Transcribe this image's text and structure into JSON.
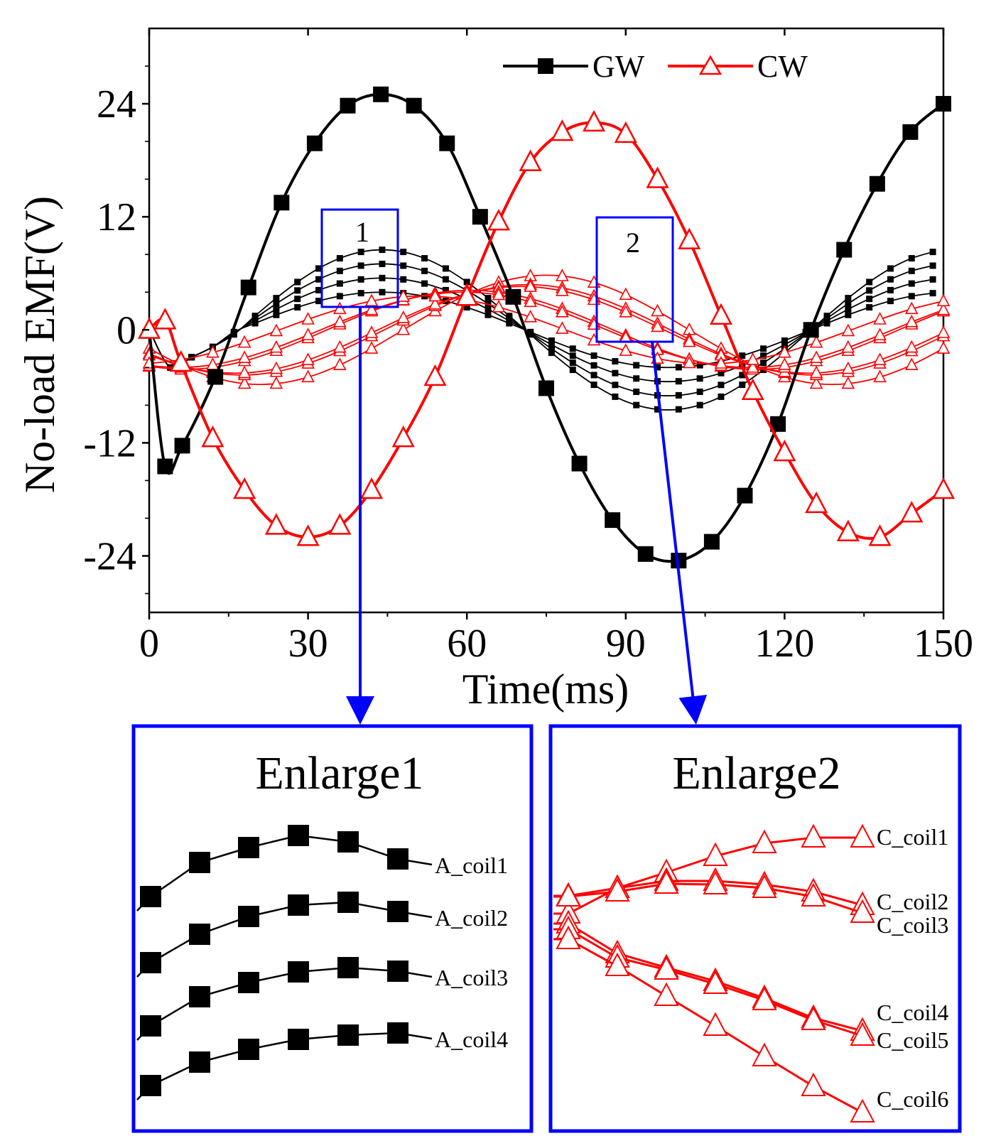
{
  "chart_data": {
    "type": "line",
    "main": {
      "xlabel": "Time(ms)",
      "ylabel": "No-load EMF(V)",
      "xlim": [
        0,
        150
      ],
      "ylim": [
        -30,
        32
      ],
      "xticks": [
        0,
        30,
        60,
        90,
        120,
        150
      ],
      "yticks": [
        -24,
        -12,
        0,
        12,
        24
      ],
      "xtick_labels": [
        "0",
        "30",
        "60",
        "90",
        "120",
        "150"
      ],
      "ytick_labels": [
        "-24",
        "-12",
        "0",
        "12",
        "24"
      ],
      "legend": {
        "position": "top-right",
        "entries": [
          "GW",
          "CW"
        ]
      },
      "series": [
        {
          "name": "GW",
          "color": "#000000",
          "marker": "square",
          "x": [
            0,
            3,
            6.25,
            12.5,
            18.75,
            25,
            31.25,
            37.5,
            43.75,
            50,
            56.25,
            62.5,
            68.75,
            75,
            81.25,
            87.5,
            93.75,
            100,
            106.25,
            112.5,
            118.75,
            125,
            131.25,
            137.5,
            143.75,
            150
          ],
          "y": [
            0,
            -14.5,
            -12.3,
            -5,
            4.5,
            13.5,
            19.8,
            23.8,
            25,
            23.8,
            19.8,
            12,
            3.5,
            -6.2,
            -14.2,
            -20.2,
            -23.8,
            -24.5,
            -22.5,
            -17.6,
            -10,
            0,
            8.5,
            15.5,
            21,
            24
          ]
        },
        {
          "name": "CW",
          "color": "#ff0000",
          "marker": "triangle",
          "x": [
            0,
            3,
            6,
            12,
            18,
            24,
            30,
            36,
            42,
            48,
            54,
            60,
            66,
            72,
            78,
            84,
            90,
            96,
            102,
            108,
            114,
            120,
            126,
            132,
            138,
            144,
            150
          ],
          "y": [
            0,
            1,
            -3.5,
            -11.5,
            -17,
            -20.8,
            -22,
            -20.8,
            -17,
            -11.5,
            -5,
            3.5,
            11.5,
            17.8,
            21,
            22,
            20.8,
            16,
            9.5,
            1.5,
            -6.5,
            -13,
            -18.5,
            -21.5,
            -22,
            -19.5,
            -17
          ]
        }
      ],
      "coil_series_gw": [
        {
          "name": "A_coil1",
          "amplitude": 8.5
        },
        {
          "name": "A_coil2",
          "amplitude": 7.0
        },
        {
          "name": "A_coil3",
          "amplitude": 5.5
        },
        {
          "name": "A_coil4",
          "amplitude": 4.0
        }
      ],
      "coil_series_cw": [
        {
          "name": "C_coil1",
          "amplitude": 5.8,
          "phase_deg": 0
        },
        {
          "name": "C_coil2",
          "amplitude": 4.8,
          "phase_deg": 12
        },
        {
          "name": "C_coil3",
          "amplitude": 4.6,
          "phase_deg": 16
        },
        {
          "name": "C_coil4",
          "amplitude": 4.2,
          "phase_deg": 48
        },
        {
          "name": "C_coil5",
          "amplitude": 4.0,
          "phase_deg": 52
        },
        {
          "name": "C_coil6",
          "amplitude": 3.6,
          "phase_deg": 78
        }
      ],
      "zoom_boxes": [
        "1",
        "2"
      ]
    },
    "enlarge1": {
      "title": "Enlarge1",
      "labels": [
        "A_coil1",
        "A_coil2",
        "A_coil3",
        "A_coil4"
      ]
    },
    "enlarge2": {
      "title": "Enlarge2",
      "labels": [
        "C_coil1",
        "C_coil2",
        "C_coil3",
        "C_coil4",
        "C_coil5",
        "C_coil6"
      ]
    }
  }
}
